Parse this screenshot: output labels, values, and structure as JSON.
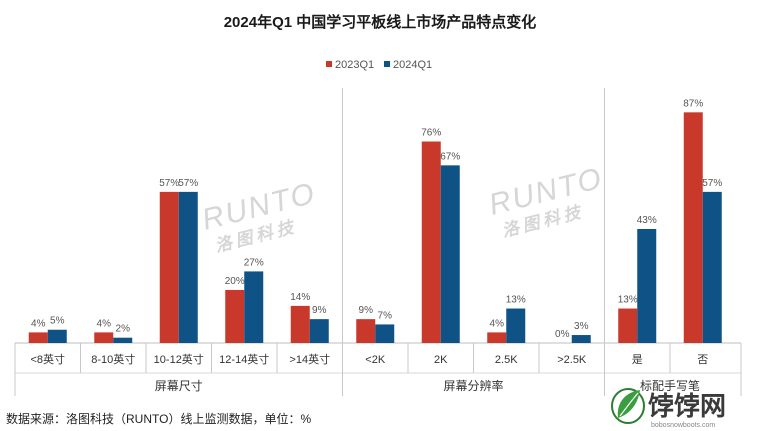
{
  "chart_data": {
    "type": "bar",
    "title": "2024年Q1 中国学习平板线上市场产品特点变化",
    "legend_position": "top",
    "series": [
      {
        "name": "2023Q1",
        "color": "#c8392b"
      },
      {
        "name": "2024Q1",
        "color": "#0f5286"
      }
    ],
    "groups": [
      {
        "label": "屏幕尺寸",
        "categories": [
          {
            "label": "<8英寸",
            "values": [
              4,
              5
            ],
            "labels": [
              "4%",
              "5%"
            ]
          },
          {
            "label": "8-10英寸",
            "values": [
              4,
              2
            ],
            "labels": [
              "4%",
              "2%"
            ]
          },
          {
            "label": "10-12英寸",
            "values": [
              57,
              57
            ],
            "labels": [
              "57%",
              "57%"
            ]
          },
          {
            "label": "12-14英寸",
            "values": [
              20,
              27
            ],
            "labels": [
              "20%",
              "27%"
            ]
          },
          {
            "label": ">14英寸",
            "values": [
              14,
              9
            ],
            "labels": [
              "14%",
              "9%"
            ]
          }
        ]
      },
      {
        "label": "屏幕分辨率",
        "categories": [
          {
            "label": "<2K",
            "values": [
              9,
              7
            ],
            "labels": [
              "9%",
              "7%"
            ]
          },
          {
            "label": "2K",
            "values": [
              76,
              67
            ],
            "labels": [
              "76%",
              "67%"
            ]
          },
          {
            "label": "2.5K",
            "values": [
              4,
              13
            ],
            "labels": [
              "4%",
              "13%"
            ]
          },
          {
            "label": ">2.5K",
            "values": [
              0,
              3
            ],
            "labels": [
              "0%",
              "3%"
            ]
          }
        ]
      },
      {
        "label": "标配手写笔",
        "categories": [
          {
            "label": "是",
            "values": [
              13,
              43
            ],
            "labels": [
              "13%",
              "43%"
            ]
          },
          {
            "label": "否",
            "values": [
              87,
              57
            ],
            "labels": [
              "87%",
              "57%"
            ]
          }
        ]
      }
    ],
    "y_range": [
      0,
      100
    ],
    "grid": false
  },
  "watermark": {
    "line1": "RUNTO",
    "line2": "洛图科技"
  },
  "source_note": "数据来源：洛图科技（RUNTO）线上监测数据，单位：%",
  "brand": {
    "name": "饽饽网",
    "url": "bobosnowboots.com"
  }
}
